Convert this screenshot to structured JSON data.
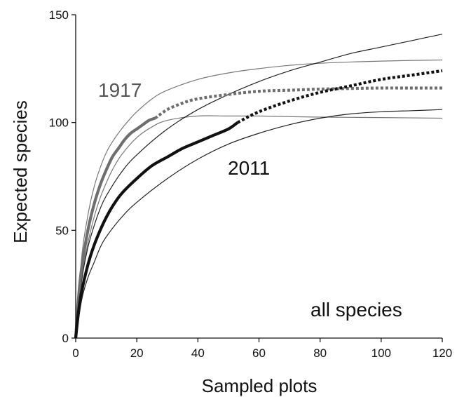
{
  "chart_data": {
    "type": "line",
    "title": "",
    "xlabel": "Sampled plots",
    "ylabel": "Expected species",
    "xlim": [
      0,
      120
    ],
    "ylim": [
      0,
      150
    ],
    "xticks": [
      0,
      20,
      40,
      60,
      80,
      100,
      120
    ],
    "yticks": [
      0,
      50,
      100,
      150
    ],
    "grid": false,
    "annotations": [
      {
        "id": "label-1917",
        "text": "1917"
      },
      {
        "id": "label-2011",
        "text": "2011"
      },
      {
        "id": "label-all-species",
        "text": "all species"
      }
    ],
    "series": [
      {
        "id": "1917-observed",
        "color": "#6e6e6e",
        "style": "thick-solid",
        "x": [
          0,
          1,
          2,
          4,
          6,
          8,
          10,
          12,
          14,
          16,
          18,
          20,
          22,
          24,
          26
        ],
        "y": [
          0,
          20,
          33,
          50,
          62,
          71,
          78,
          84,
          88,
          92,
          95,
          97,
          99,
          101,
          102
        ]
      },
      {
        "id": "1917-extrapolated",
        "color": "#6e6e6e",
        "style": "thick-dotted",
        "x": [
          26,
          30,
          35,
          40,
          50,
          60,
          70,
          80,
          90,
          100,
          110,
          120
        ],
        "y": [
          102,
          106,
          109,
          111,
          113,
          114.5,
          115,
          115.5,
          115.8,
          116,
          116,
          116
        ]
      },
      {
        "id": "1917-upper-ci",
        "color": "#777777",
        "style": "thin-solid",
        "x": [
          0,
          2,
          4,
          6,
          8,
          10,
          12,
          15,
          18,
          20,
          25,
          30,
          40,
          50,
          60,
          70,
          80,
          100,
          120
        ],
        "y": [
          0,
          38,
          57,
          70,
          79,
          86,
          91,
          97,
          102,
          105,
          111,
          115,
          120,
          123,
          125,
          126.5,
          127.5,
          128.5,
          129
        ]
      },
      {
        "id": "1917-lower-ci",
        "color": "#777777",
        "style": "thin-solid",
        "x": [
          0,
          2,
          4,
          6,
          8,
          10,
          12,
          15,
          20,
          25,
          30,
          40,
          50,
          60,
          80,
          100,
          120
        ],
        "y": [
          0,
          28,
          44,
          56,
          65,
          72,
          78,
          85,
          93,
          98,
          101,
          103,
          103,
          103,
          102.5,
          102.3,
          102
        ]
      },
      {
        "id": "2011-observed",
        "color": "#111111",
        "style": "thick-solid",
        "x": [
          0,
          1,
          2,
          4,
          6,
          8,
          10,
          12,
          15,
          20,
          25,
          30,
          35,
          40,
          45,
          50,
          53
        ],
        "y": [
          0,
          13,
          22,
          34,
          43,
          50,
          56,
          61,
          67,
          74,
          80,
          84,
          88,
          91,
          94,
          97,
          100
        ]
      },
      {
        "id": "2011-extrapolated",
        "color": "#111111",
        "style": "thick-dotted",
        "x": [
          53,
          60,
          70,
          80,
          90,
          100,
          110,
          120
        ],
        "y": [
          100,
          105,
          110,
          114,
          117,
          120,
          122,
          124
        ]
      },
      {
        "id": "2011-upper-ci",
        "color": "#222222",
        "style": "thin-solid",
        "x": [
          0,
          2,
          4,
          6,
          8,
          10,
          15,
          20,
          30,
          40,
          50,
          60,
          70,
          80,
          90,
          100,
          110,
          120
        ],
        "y": [
          0,
          27,
          42,
          52,
          60,
          66,
          77,
          85,
          97,
          106,
          113,
          119,
          124,
          128,
          132,
          135,
          138,
          141
        ]
      },
      {
        "id": "2011-lower-ci",
        "color": "#222222",
        "style": "thin-solid",
        "x": [
          0,
          2,
          4,
          6,
          8,
          10,
          15,
          20,
          30,
          40,
          50,
          60,
          70,
          80,
          90,
          100,
          110,
          120
        ],
        "y": [
          0,
          18,
          28,
          35,
          42,
          47,
          56,
          63,
          74,
          83,
          90,
          95,
          99,
          102,
          104,
          105,
          105.5,
          106
        ]
      }
    ]
  }
}
